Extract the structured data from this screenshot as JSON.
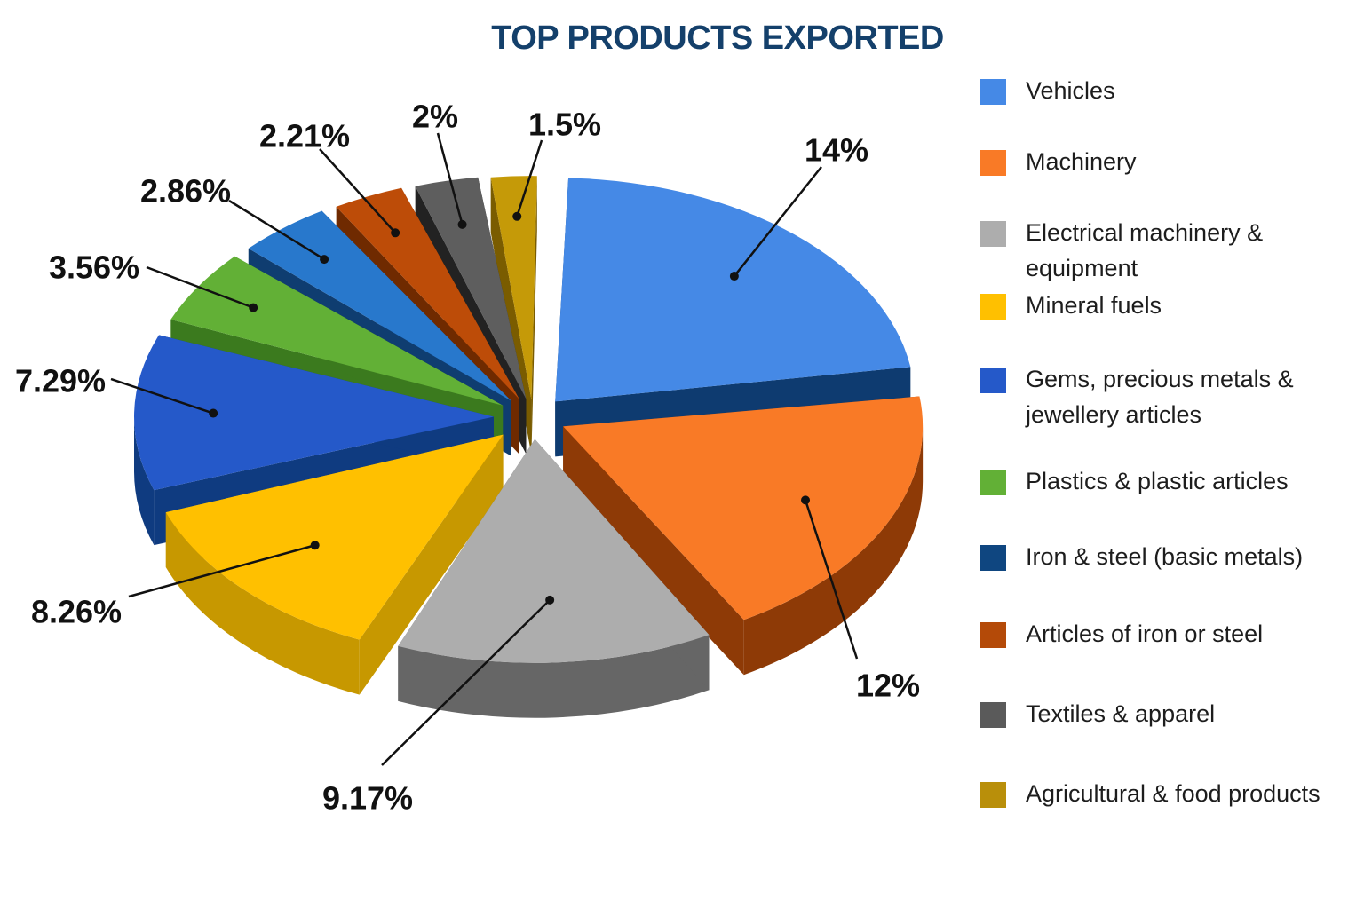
{
  "chart_data": {
    "type": "pie",
    "title": "TOP PRODUCTS EXPORTED",
    "legend_position": "right",
    "slices": [
      {
        "name": "Vehicles",
        "label": "14%",
        "value": 14,
        "color": "#4589e6",
        "side_color": "#0e3b70"
      },
      {
        "name": "Machinery",
        "label": "12%",
        "value": 12,
        "color": "#f97a26",
        "side_color": "#8e3a06"
      },
      {
        "name": "Electrical machinery & equipment",
        "label": "9.17%",
        "value": 9.17,
        "color": "#adadad",
        "side_color": "#666666"
      },
      {
        "name": "Mineral fuels",
        "label": "8.26%",
        "value": 8.26,
        "color": "#ffc000",
        "side_color": "#c79800"
      },
      {
        "name": "Gems, precious metals &\njewellery articles",
        "label": "7.29%",
        "value": 7.29,
        "color": "#2559c9",
        "side_color": "#0f3b80"
      },
      {
        "name": "Plastics & plastic articles",
        "label": "3.56%",
        "value": 3.56,
        "color": "#62b036",
        "side_color": "#3b7a1e"
      },
      {
        "name": "Iron & steel (basic metals)",
        "label": "2.86%",
        "value": 2.86,
        "color": "#2878cc",
        "side_color": "#0f3d70"
      },
      {
        "name": "Articles of iron or steel",
        "label": "2.21%",
        "value": 2.21,
        "color": "#bd4c08",
        "side_color": "#6f2a00"
      },
      {
        "name": "Textiles & apparel",
        "label": "2%",
        "value": 2,
        "color": "#5e5e5e",
        "side_color": "#222222"
      },
      {
        "name": "Agricultural & food products",
        "label": "1.5%",
        "value": 1.5,
        "color": "#c59a08",
        "side_color": "#7a5c00"
      }
    ],
    "legend_colors": [
      "#4589e6",
      "#f97a26",
      "#adadad",
      "#ffc000",
      "#2559c9",
      "#62b036",
      "#0f4680",
      "#b44a08",
      "#5a5a5a",
      "#b98f0a"
    ]
  }
}
